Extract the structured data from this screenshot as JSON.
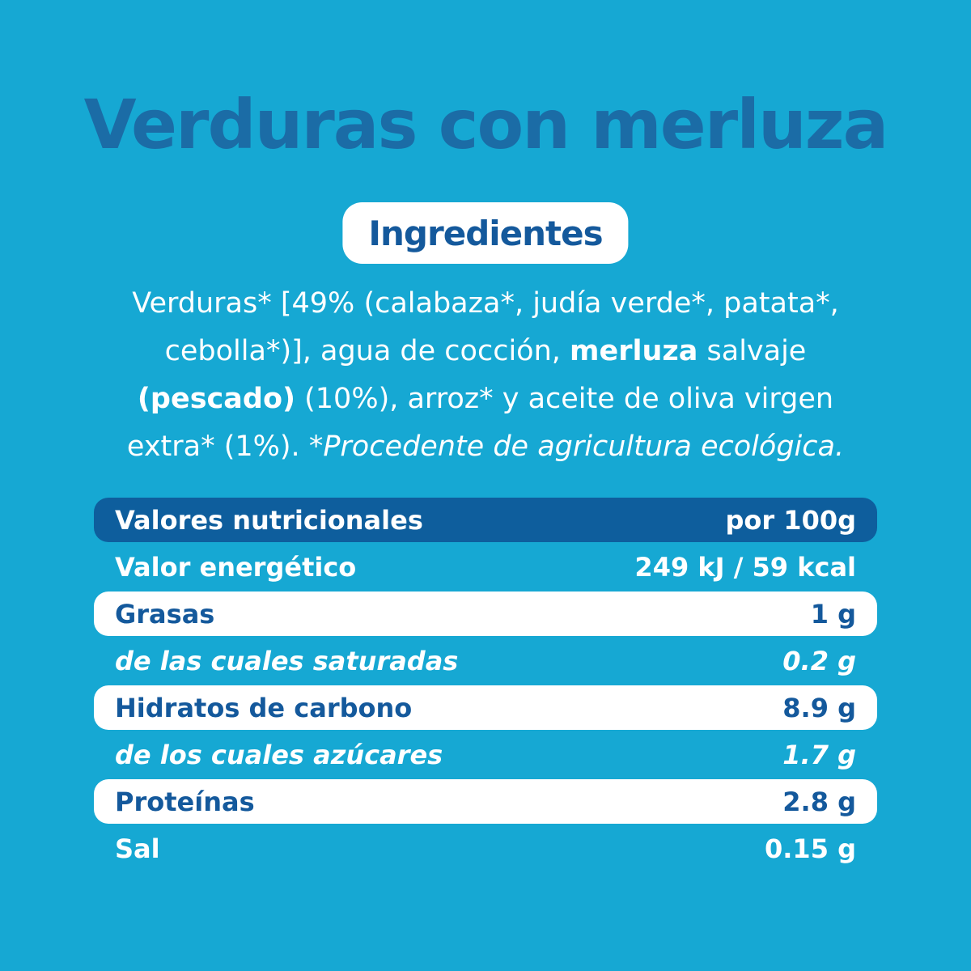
{
  "label": {
    "title": "Verduras con merluza",
    "ingredients_heading": "Ingredientes"
  },
  "ingredients": {
    "lines": [
      {
        "segments": [
          {
            "text": "Verduras* [49% (calabaza*, judía verde*, patata*,",
            "style": "regular"
          }
        ]
      },
      {
        "segments": [
          {
            "text": "cebolla*)], agua de cocción, ",
            "style": "regular"
          },
          {
            "text": "merluza",
            "style": "bold"
          },
          {
            "text": " salvaje",
            "style": "regular"
          }
        ]
      },
      {
        "segments": [
          {
            "text": "(pescado)",
            "style": "bold"
          },
          {
            "text": " (10%), arroz* y aceite de oliva virgen",
            "style": "regular"
          }
        ]
      },
      {
        "segments": [
          {
            "text": "extra* (1%). ",
            "style": "regular"
          },
          {
            "text": "*Procedente de agricultura ecológica.",
            "style": "italic"
          }
        ]
      }
    ]
  },
  "nutrition": {
    "header": {
      "label": "Valores nutricionales",
      "value": "por 100g"
    },
    "rows": [
      {
        "label": "Valor energético",
        "value": "249 kJ / 59 kcal",
        "row_style": "plain"
      },
      {
        "label": "Grasas",
        "value": "1 g",
        "row_style": "white"
      },
      {
        "label": "de las cuales saturadas",
        "value": "0.2 g",
        "row_style": "plain-sub"
      },
      {
        "label": "Hidratos de carbono",
        "value": "8.9 g",
        "row_style": "white"
      },
      {
        "label": "de los cuales azúcares",
        "value": "1.7 g",
        "row_style": "plain-sub"
      },
      {
        "label": "Proteínas",
        "value": "2.8 g",
        "row_style": "white"
      },
      {
        "label": "Sal",
        "value": "0.15 g",
        "row_style": "plain"
      }
    ]
  },
  "colors": {
    "background_cyan": "#16a8d3",
    "title_blue": "#1b6ca6",
    "deep_blue_text": "#14599c",
    "table_header_bg": "#0e5e9d",
    "row_white": "#ffffff"
  }
}
